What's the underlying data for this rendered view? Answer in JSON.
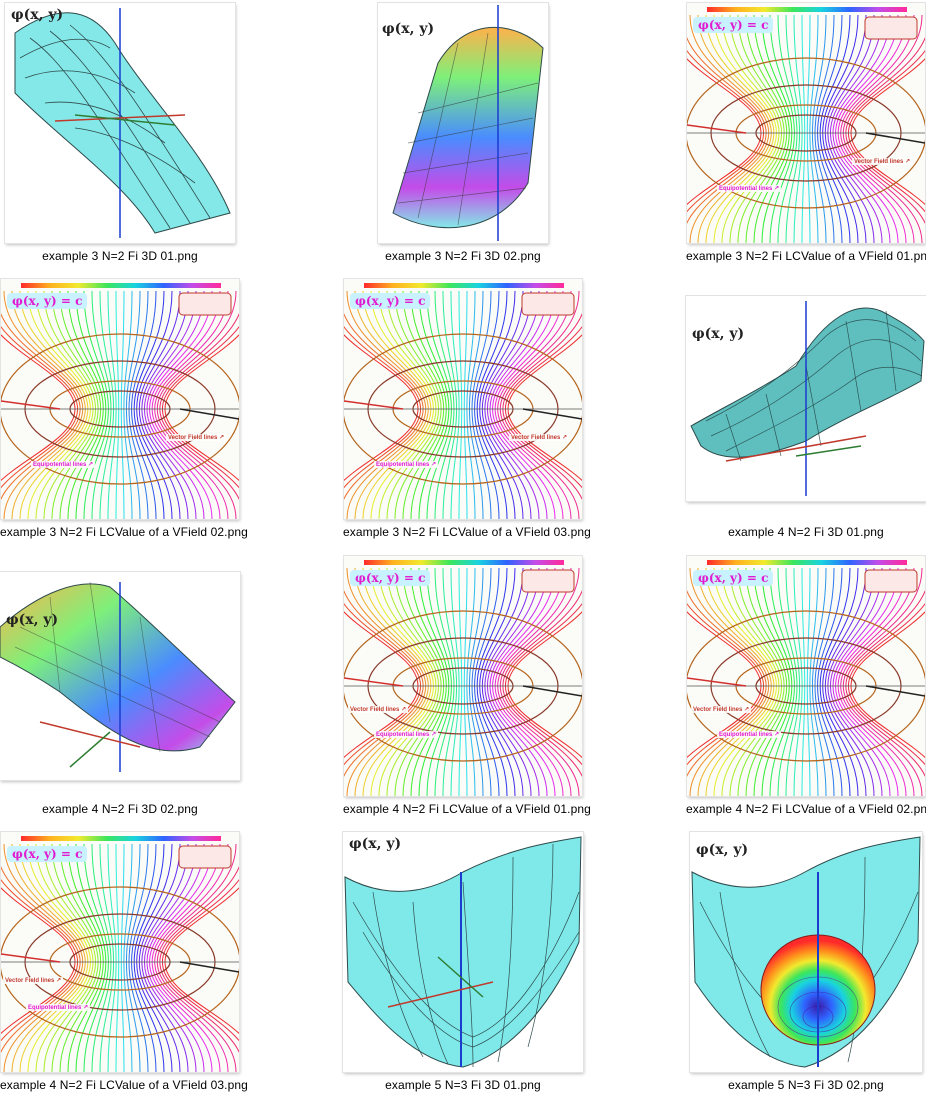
{
  "files": [
    {
      "name": "example 3  N=2  Fi 3D   01.png",
      "kind": "3d-surface-saddle"
    },
    {
      "name": "example 3  N=2  Fi 3D 02.png",
      "kind": "3d-surface-colored"
    },
    {
      "name": "example 3  N=2  Fi LCValue of a VField 01.png",
      "kind": "field-plot"
    },
    {
      "name": "example 3  N=2  Fi LCValue of a VField 02.png",
      "kind": "field-plot"
    },
    {
      "name": "example 3  N=2  Fi LCValue of a VField 03.png",
      "kind": "field-plot"
    },
    {
      "name": "example 4  N=2  Fi 3D 01.png",
      "kind": "3d-surface-wave"
    },
    {
      "name": "example 4  N=2  Fi 3D 02.png",
      "kind": "3d-surface-colored"
    },
    {
      "name": "example 4  N=2  Fi LCValue of a VField 01.png",
      "kind": "field-plot"
    },
    {
      "name": "example 4  N=2  Fi LCValue of a VField 02.png",
      "kind": "field-plot"
    },
    {
      "name": "example 4  N=2  Fi LCValue of a VField 03.png",
      "kind": "field-plot"
    },
    {
      "name": "example 5  N=3  Fi 3D 01.png",
      "kind": "3d-surface-bowl"
    },
    {
      "name": "example 5  N=3  Fi 3D 02.png",
      "kind": "3d-surface-bowl-rainbow"
    }
  ],
  "thumb_labels": {
    "phi": "φ(x, y)",
    "phi_c": "φ(x, y) = c",
    "vector_field": "Vector Field lines ↗",
    "equipotential": "Equipotential lines ↗"
  },
  "colors": {
    "surface": "#7fe9ea",
    "mesh": "#2e4a4a",
    "vector_label": "#c0392b",
    "equipotential_label": "#e01bd0"
  }
}
